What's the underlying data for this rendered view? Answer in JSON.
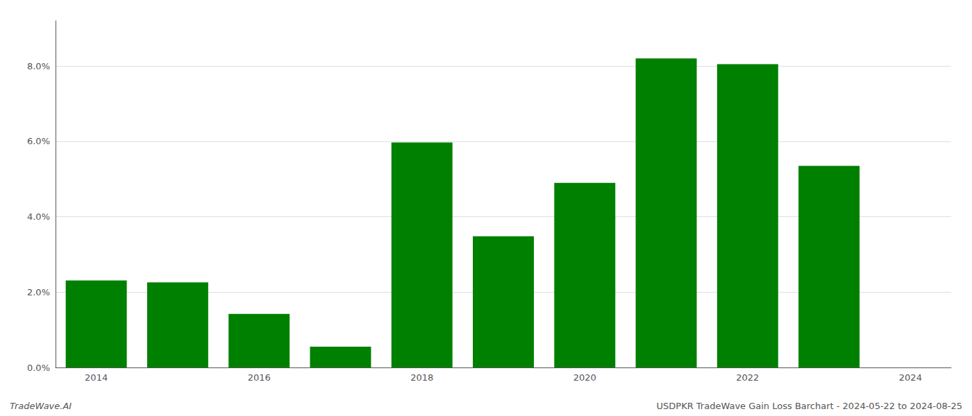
{
  "chart_data": {
    "type": "bar",
    "categories": [
      "2014",
      null,
      "2016",
      null,
      "2018",
      null,
      "2020",
      null,
      "2022",
      null,
      "2024"
    ],
    "values": [
      0.0231,
      0.0226,
      0.0142,
      0.0055,
      0.0597,
      0.0348,
      0.049,
      0.082,
      0.0805,
      0.0535,
      null
    ],
    "color": "#008000",
    "ylim": [
      0,
      0.092
    ],
    "yticks": [
      {
        "value": 0.0,
        "label": "0.0%"
      },
      {
        "value": 0.02,
        "label": "2.0%"
      },
      {
        "value": 0.04,
        "label": "4.0%"
      },
      {
        "value": 0.06,
        "label": "6.0%"
      },
      {
        "value": 0.08,
        "label": "8.0%"
      }
    ],
    "grid": true,
    "annotations": [
      "TradeWave.AI",
      "USDPKR TradeWave Gain Loss Barchart - 2024-05-22 to 2024-08-25"
    ]
  }
}
